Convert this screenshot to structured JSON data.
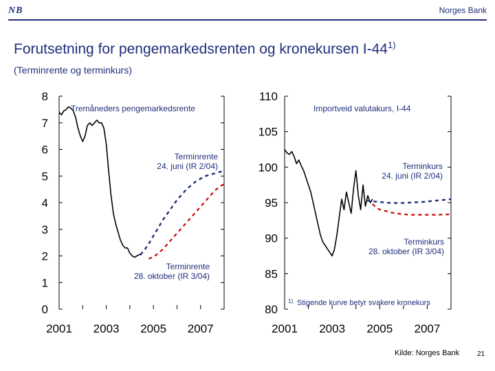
{
  "header": {
    "logo_text": "NB",
    "bank_name": "Norges Bank",
    "title": "Forutsetning for pengemarkedsrenten og kronekursen I-44",
    "title_sup": "1)",
    "subtitle": "(Terminrente og terminkurs)"
  },
  "footer": {
    "source": "Kilde: Norges Bank",
    "page": "21"
  },
  "colors": {
    "actual": "#000000",
    "forward_june": "#1f2d7a",
    "forward_oct": "#cc0000",
    "text_blue": "#1f2d7a"
  },
  "chart_data": [
    {
      "type": "line",
      "x_ticks": [
        "2001",
        "2003",
        "2005",
        "2007"
      ],
      "y_ticks": [
        "0",
        "1",
        "2",
        "3",
        "4",
        "5",
        "6",
        "7",
        "8"
      ],
      "ylim": [
        0,
        8
      ],
      "xlim": [
        2001,
        2008
      ],
      "labels": {
        "series_actual": "Tremåneders pengemarkedsrente",
        "june_line1": "Terminrente",
        "june_line2": "24. juni (IR 2/04)",
        "oct_line1": "Terminrente",
        "oct_line2": "28. oktober (IR 3/04)"
      },
      "series": [
        {
          "key": "actual",
          "x": [
            2001.0,
            2001.1,
            2001.2,
            2001.3,
            2001.4,
            2001.5,
            2001.6,
            2001.7,
            2001.8,
            2001.9,
            2002.0,
            2002.1,
            2002.2,
            2002.3,
            2002.4,
            2002.5,
            2002.6,
            2002.7,
            2002.8,
            2002.9,
            2003.0,
            2003.1,
            2003.2,
            2003.3,
            2003.4,
            2003.5,
            2003.6,
            2003.7,
            2003.8,
            2003.9,
            2004.0,
            2004.1,
            2004.2,
            2004.3,
            2004.4,
            2004.5
          ],
          "y": [
            7.4,
            7.3,
            7.45,
            7.5,
            7.6,
            7.55,
            7.45,
            7.2,
            6.8,
            6.5,
            6.3,
            6.5,
            6.9,
            7.0,
            6.9,
            7.0,
            7.1,
            7.0,
            7.0,
            6.8,
            6.2,
            5.2,
            4.3,
            3.6,
            3.2,
            2.9,
            2.6,
            2.4,
            2.3,
            2.3,
            2.1,
            2.0,
            1.95,
            2.0,
            2.05,
            2.05
          ]
        },
        {
          "key": "forward_june",
          "x": [
            2004.45,
            2004.6,
            2004.8,
            2005.0,
            2005.2,
            2005.4,
            2005.6,
            2005.8,
            2006.0,
            2006.2,
            2006.4,
            2006.6,
            2006.8,
            2007.0,
            2007.2,
            2007.4,
            2007.6,
            2007.8,
            2008.0
          ],
          "y": [
            2.05,
            2.2,
            2.45,
            2.75,
            3.05,
            3.35,
            3.6,
            3.85,
            4.1,
            4.3,
            4.5,
            4.65,
            4.8,
            4.9,
            5.0,
            5.05,
            5.1,
            5.15,
            5.2
          ]
        },
        {
          "key": "forward_oct",
          "x": [
            2004.8,
            2005.0,
            2005.2,
            2005.4,
            2005.6,
            2005.8,
            2006.0,
            2006.2,
            2006.4,
            2006.6,
            2006.8,
            2007.0,
            2007.2,
            2007.4,
            2007.6,
            2007.8,
            2008.0
          ],
          "y": [
            1.9,
            1.95,
            2.1,
            2.25,
            2.45,
            2.65,
            2.85,
            3.05,
            3.25,
            3.45,
            3.65,
            3.85,
            4.05,
            4.25,
            4.45,
            4.6,
            4.7
          ]
        }
      ]
    },
    {
      "type": "line",
      "x_ticks": [
        "2001",
        "2003",
        "2005",
        "2007"
      ],
      "y_ticks": [
        "80",
        "85",
        "90",
        "95",
        "100",
        "105",
        "110"
      ],
      "ylim": [
        80,
        110
      ],
      "xlim": [
        2001,
        2008
      ],
      "labels": {
        "series_actual": "Importveid valutakurs, I-44",
        "june_line1": "Terminkurs",
        "june_line2": "24. juni (IR 2/04)",
        "oct_line1": "Terminkurs",
        "oct_line2": "28. oktober (IR 3/04)",
        "footnote": "Stigende kurve betyr svakere kronekurs",
        "footnote_sup": "1)"
      },
      "series": [
        {
          "key": "actual",
          "x": [
            2001.0,
            2001.1,
            2001.2,
            2001.3,
            2001.4,
            2001.5,
            2001.6,
            2001.7,
            2001.8,
            2001.9,
            2002.0,
            2002.1,
            2002.2,
            2002.3,
            2002.4,
            2002.5,
            2002.6,
            2002.7,
            2002.8,
            2002.9,
            2003.0,
            2003.1,
            2003.2,
            2003.3,
            2003.4,
            2003.5,
            2003.6,
            2003.7,
            2003.8,
            2003.9,
            2004.0,
            2004.1,
            2004.2,
            2004.3,
            2004.4,
            2004.5,
            2004.6,
            2004.7
          ],
          "y": [
            102.5,
            102,
            101.8,
            102.2,
            101.5,
            100.5,
            101.0,
            100.2,
            99.5,
            98.5,
            97.5,
            96.5,
            95.0,
            93.5,
            92.0,
            90.5,
            89.5,
            89.0,
            88.5,
            88.0,
            87.5,
            88.5,
            90.5,
            93.0,
            95.5,
            94.0,
            96.5,
            95.0,
            93.5,
            97.0,
            99.5,
            96.0,
            94.0,
            97.5,
            94.5,
            96.0,
            95.0,
            95.5
          ]
        },
        {
          "key": "forward_june",
          "x": [
            2004.45,
            2004.7,
            2005.0,
            2005.3,
            2005.6,
            2005.9,
            2006.2,
            2006.5,
            2006.8,
            2007.1,
            2007.4,
            2007.7,
            2008.0
          ],
          "y": [
            95.3,
            95.2,
            95.1,
            95.0,
            94.95,
            94.95,
            95.0,
            95.05,
            95.1,
            95.2,
            95.3,
            95.4,
            95.5
          ]
        },
        {
          "key": "forward_oct",
          "x": [
            2004.7,
            2004.9,
            2005.1,
            2005.3,
            2005.5,
            2005.7,
            2005.9,
            2006.1,
            2006.3,
            2006.5,
            2006.7,
            2006.9,
            2007.1,
            2007.3,
            2007.5,
            2007.7,
            2008.0
          ],
          "y": [
            94.8,
            94.2,
            93.9,
            93.8,
            93.6,
            93.5,
            93.4,
            93.35,
            93.3,
            93.3,
            93.3,
            93.3,
            93.3,
            93.3,
            93.3,
            93.35,
            93.35
          ]
        }
      ]
    }
  ]
}
